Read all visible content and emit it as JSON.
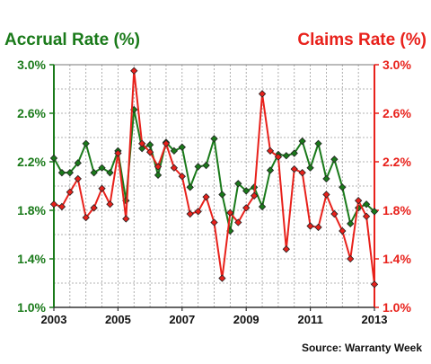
{
  "colors": {
    "accrual": "#1a7a1a",
    "claims": "#e8211b",
    "grid": "#9a9a9a",
    "text": "#111111"
  },
  "chart_data": {
    "type": "line",
    "left_axis_label": "Accrual Rate (%)",
    "right_axis_label": "Claims Rate (%)",
    "source": "Source: Warranty Week",
    "xlim": [
      2003,
      2013
    ],
    "ylim": [
      1.0,
      3.0
    ],
    "x_ticks": [
      2003,
      2005,
      2007,
      2009,
      2011,
      2013
    ],
    "x_tick_labels": [
      "2003",
      "2005",
      "2007",
      "2009",
      "2011",
      "2013"
    ],
    "y_ticks": [
      1.0,
      1.4,
      1.8,
      2.2,
      2.6,
      3.0
    ],
    "y_tick_labels": [
      "1.0%",
      "1.4%",
      "1.8%",
      "2.2%",
      "2.6%",
      "3.0%"
    ],
    "grid": true,
    "x": [
      2003.0,
      2003.25,
      2003.5,
      2003.75,
      2004.0,
      2004.25,
      2004.5,
      2004.75,
      2005.0,
      2005.25,
      2005.5,
      2005.75,
      2006.0,
      2006.25,
      2006.5,
      2006.75,
      2007.0,
      2007.25,
      2007.5,
      2007.75,
      2008.0,
      2008.25,
      2008.5,
      2008.75,
      2009.0,
      2009.25,
      2009.5,
      2009.75,
      2010.0,
      2010.25,
      2010.5,
      2010.75,
      2011.0,
      2011.25,
      2011.5,
      2011.75,
      2012.0,
      2012.25,
      2012.5,
      2012.75,
      2013.0
    ],
    "series": [
      {
        "name": "Accrual Rate (%)",
        "axis": "left",
        "values": [
          2.23,
          2.11,
          2.11,
          2.19,
          2.35,
          2.11,
          2.15,
          2.11,
          2.29,
          1.88,
          2.63,
          2.31,
          2.34,
          2.09,
          2.36,
          2.29,
          2.32,
          1.99,
          2.16,
          2.17,
          2.39,
          1.93,
          1.63,
          2.02,
          1.96,
          1.99,
          1.83,
          2.13,
          2.26,
          2.25,
          2.27,
          2.37,
          2.15,
          2.35,
          2.06,
          2.22,
          1.99,
          1.69,
          1.82,
          1.85,
          1.79
        ]
      },
      {
        "name": "Claims Rate (%)",
        "axis": "right",
        "values": [
          1.85,
          1.83,
          1.95,
          2.06,
          1.74,
          1.82,
          1.98,
          1.85,
          2.27,
          1.73,
          2.95,
          2.35,
          2.28,
          2.16,
          2.35,
          2.15,
          2.08,
          1.77,
          1.79,
          1.91,
          1.7,
          1.24,
          1.78,
          1.7,
          1.82,
          1.92,
          2.76,
          2.29,
          2.24,
          1.48,
          2.14,
          2.11,
          1.67,
          1.66,
          1.93,
          1.77,
          1.63,
          1.4,
          1.88,
          1.75,
          1.19
        ]
      }
    ]
  }
}
